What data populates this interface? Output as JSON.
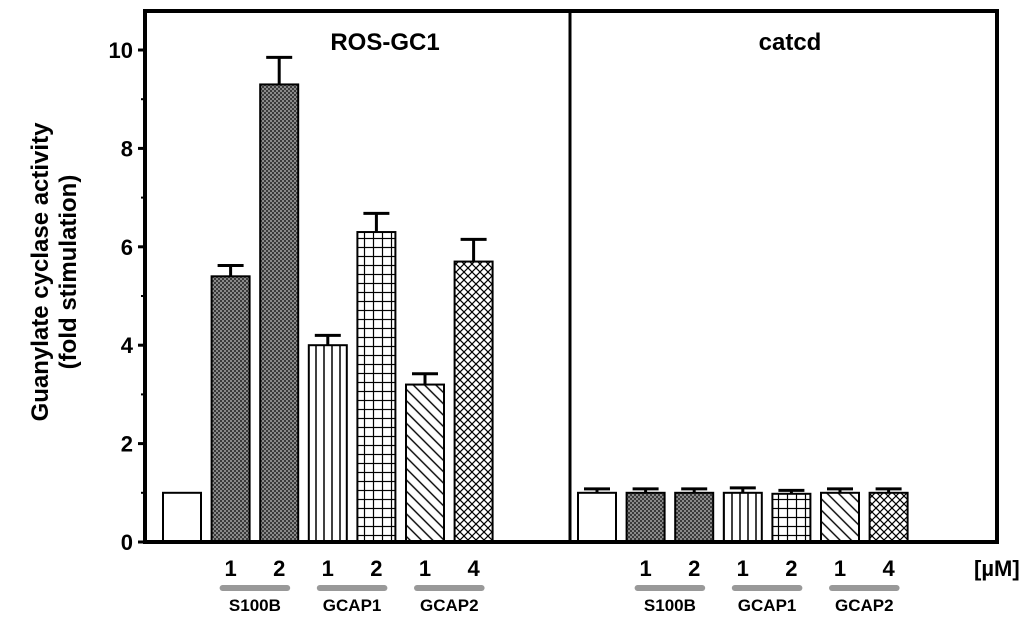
{
  "chart_data": {
    "type": "bar",
    "ylabel_line1": "Guanylate cyclase activity",
    "ylabel_line2": "(fold stimulation)",
    "ylim": [
      0,
      10.8
    ],
    "yticks": [
      0,
      2,
      4,
      6,
      8,
      10
    ],
    "unit_label": "[µM]",
    "grid": false,
    "panels": [
      {
        "title": "ROS-GC1",
        "bars": [
          {
            "dose": "",
            "group": "",
            "value": 1.0,
            "error": 0,
            "pattern": "none"
          },
          {
            "dose": "1",
            "group": "S100B",
            "value": 5.4,
            "error": 0.22,
            "pattern": "dots"
          },
          {
            "dose": "2",
            "group": "S100B",
            "value": 9.3,
            "error": 0.55,
            "pattern": "dots"
          },
          {
            "dose": "1",
            "group": "GCAP1",
            "value": 4.0,
            "error": 0.2,
            "pattern": "vlines"
          },
          {
            "dose": "2",
            "group": "GCAP1",
            "value": 6.3,
            "error": 0.38,
            "pattern": "grid"
          },
          {
            "dose": "1",
            "group": "GCAP2",
            "value": 3.2,
            "error": 0.22,
            "pattern": "diag"
          },
          {
            "dose": "4",
            "group": "GCAP2",
            "value": 5.7,
            "error": 0.45,
            "pattern": "cross"
          }
        ]
      },
      {
        "title": "catcd",
        "bars": [
          {
            "dose": "",
            "group": "",
            "value": 1.0,
            "error": 0.08,
            "pattern": "none"
          },
          {
            "dose": "1",
            "group": "S100B",
            "value": 1.0,
            "error": 0.08,
            "pattern": "dots"
          },
          {
            "dose": "2",
            "group": "S100B",
            "value": 1.0,
            "error": 0.08,
            "pattern": "dots"
          },
          {
            "dose": "1",
            "group": "GCAP1",
            "value": 1.0,
            "error": 0.1,
            "pattern": "vlines"
          },
          {
            "dose": "2",
            "group": "GCAP1",
            "value": 0.98,
            "error": 0.07,
            "pattern": "grid"
          },
          {
            "dose": "1",
            "group": "GCAP2",
            "value": 1.0,
            "error": 0.08,
            "pattern": "diag"
          },
          {
            "dose": "4",
            "group": "GCAP2",
            "value": 1.0,
            "error": 0.08,
            "pattern": "cross"
          }
        ]
      }
    ],
    "groups": [
      "S100B",
      "GCAP1",
      "GCAP2"
    ]
  }
}
